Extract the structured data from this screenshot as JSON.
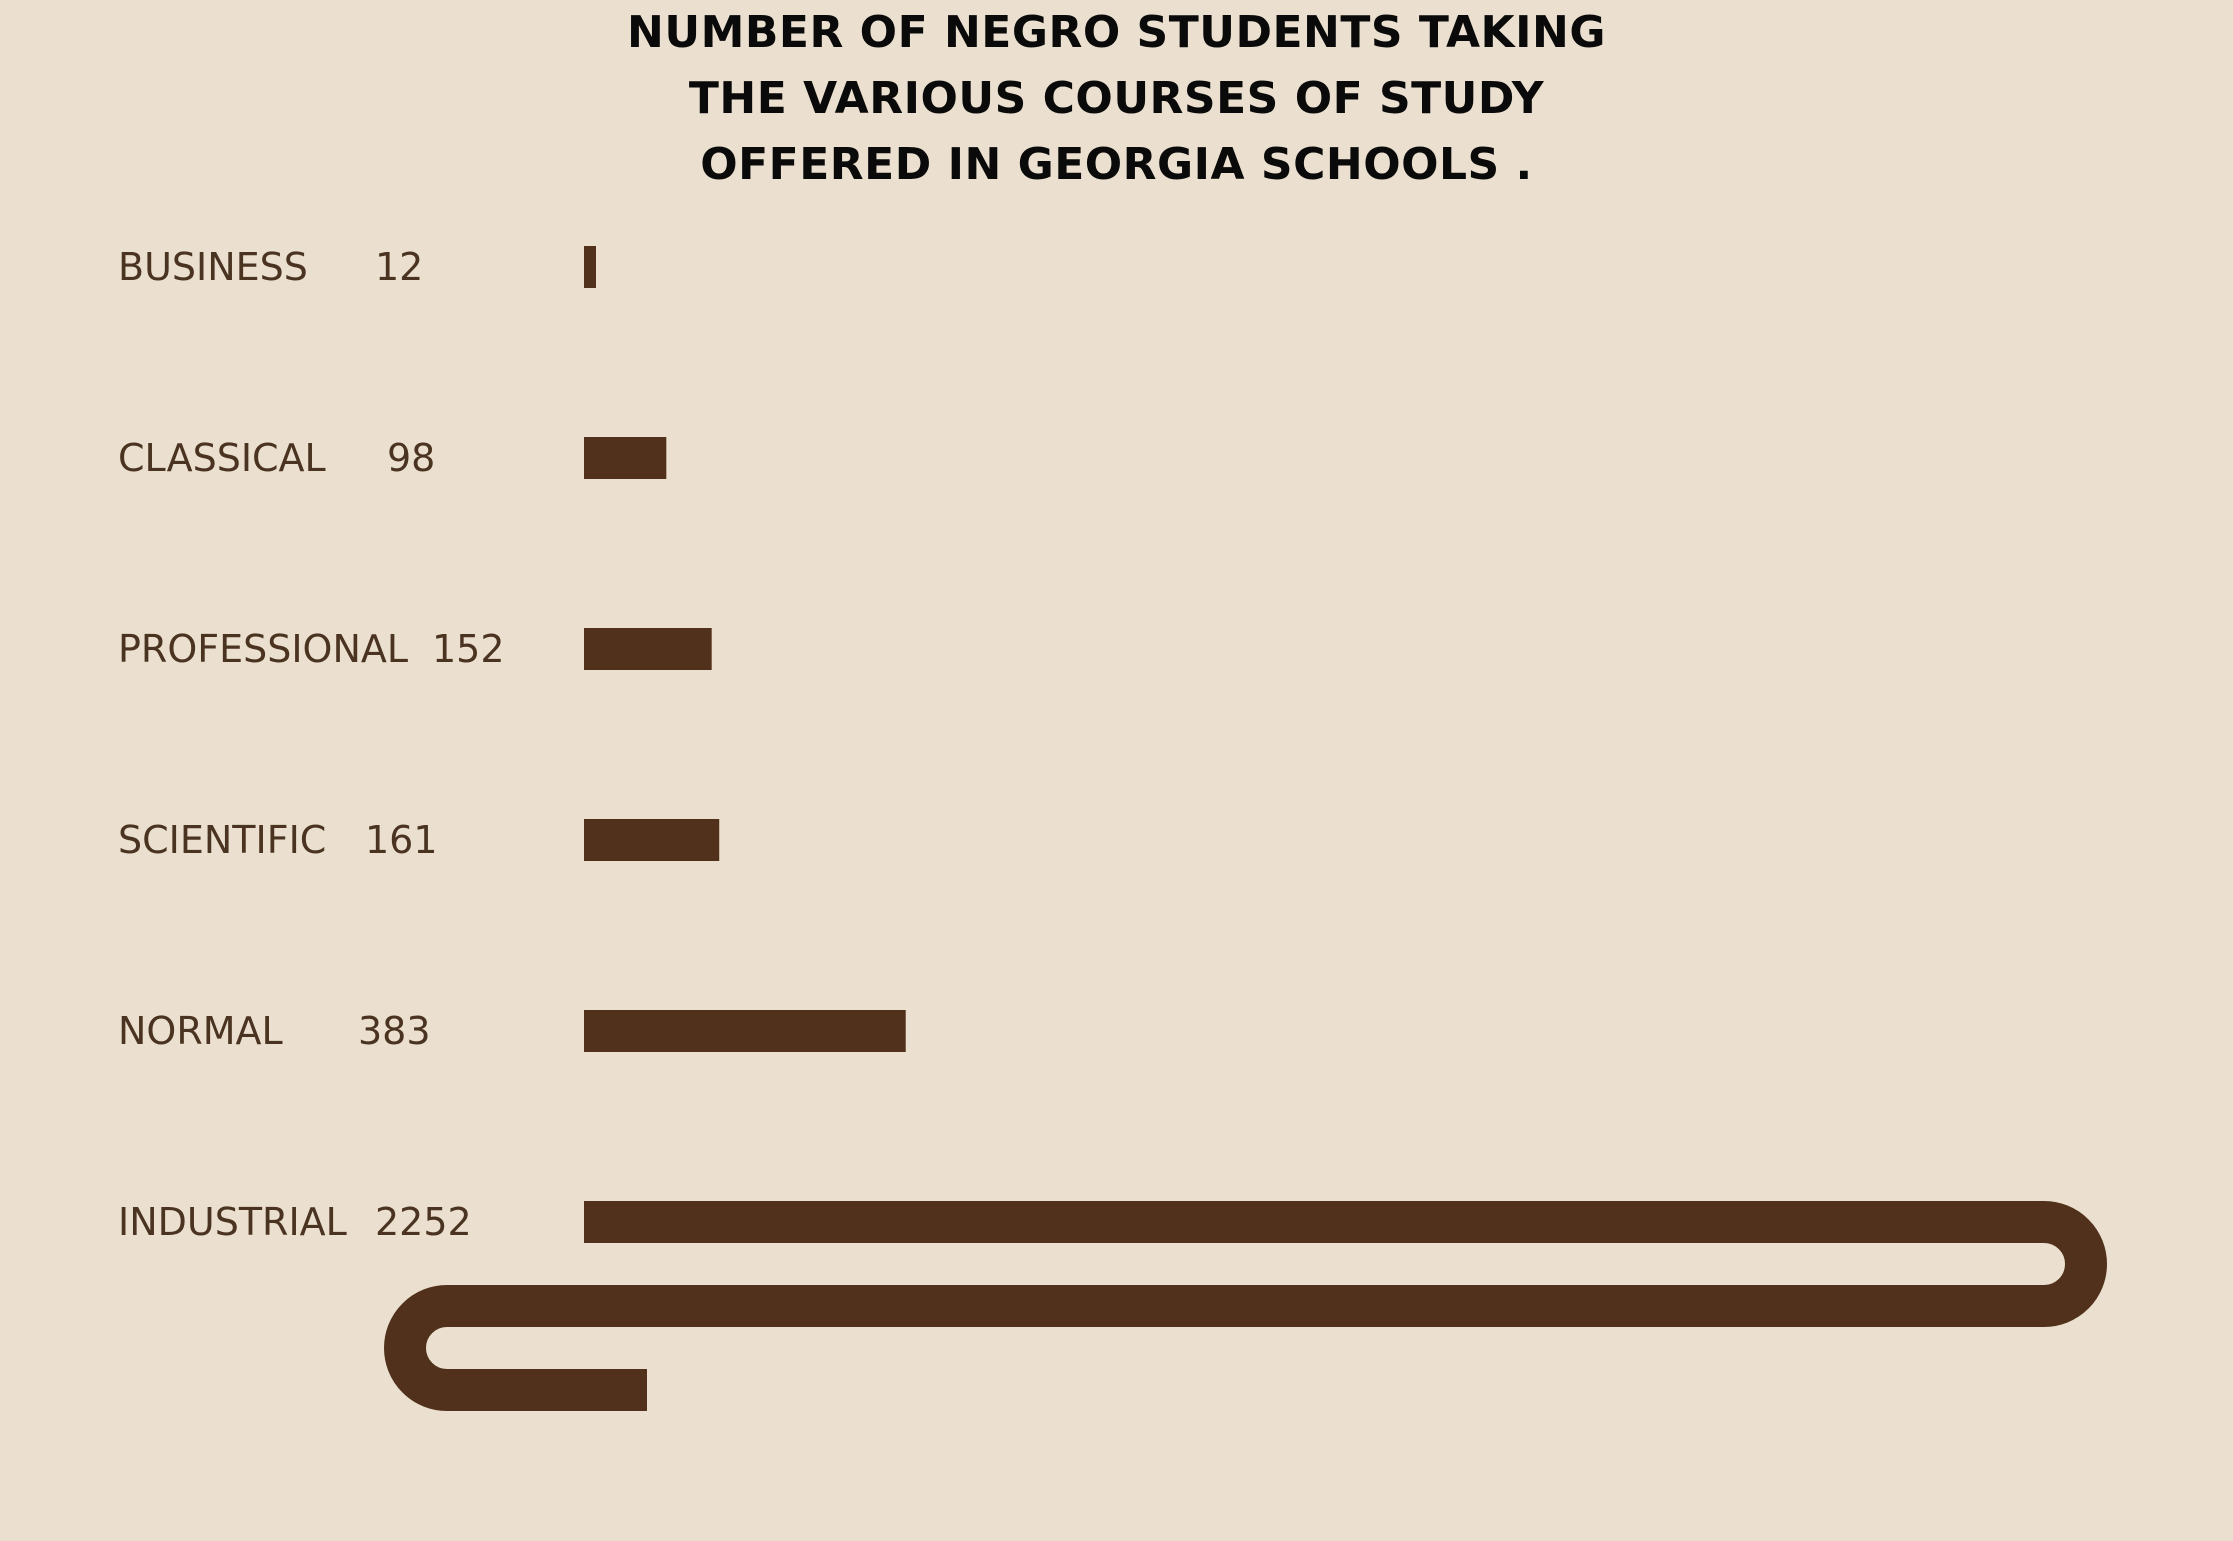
{
  "title_lines": [
    "NUMBER OF NEGRO STUDENTS TAKING",
    "THE VARIOUS COURSES OF STUDY",
    "OFFERED IN GEORGIA SCHOOLS ."
  ],
  "colors": {
    "background": "#ebe0cf",
    "bar": "#51311b",
    "label_text": "#4a3320",
    "title_text": "#0a0a0a"
  },
  "chart_data": {
    "type": "bar",
    "orientation": "horizontal",
    "title": "NUMBER OF NEGRO STUDENTS TAKING THE VARIOUS COURSES OF STUDY OFFERED IN GEORGIA SCHOOLS .",
    "categories": [
      "BUSINESS",
      "CLASSICAL",
      "PROFESSIONAL",
      "SCIENTIFIC",
      "NORMAL",
      "INDUSTRIAL"
    ],
    "values": [
      12,
      98,
      152,
      161,
      383,
      2252
    ],
    "value_labels": [
      "12",
      "98",
      "152",
      "161",
      "383",
      "2252"
    ],
    "grid": false,
    "legend": "none",
    "note_longest_bar": "snakes back and forth across the page"
  }
}
